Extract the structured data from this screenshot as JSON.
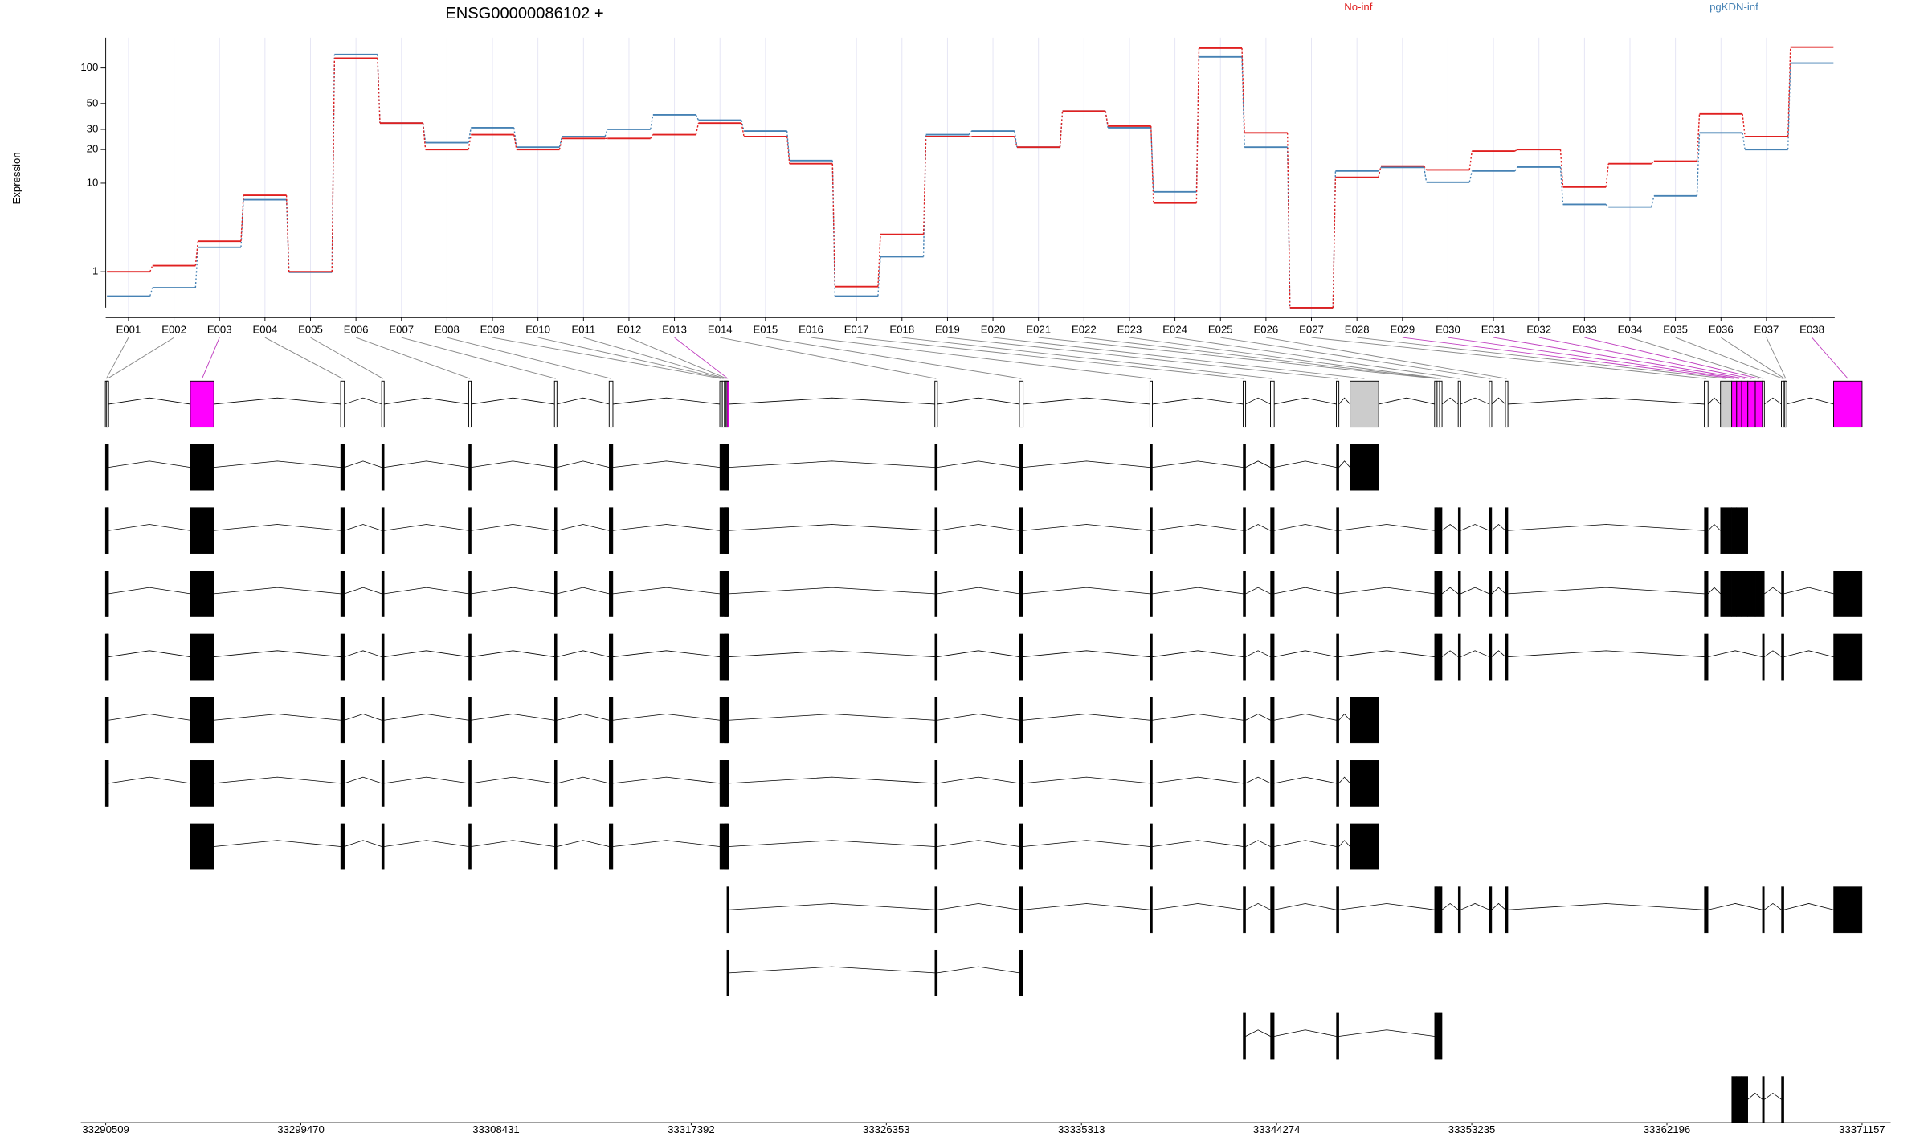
{
  "chart_data": [
    {
      "type": "line",
      "title": "ENSG00000086102 +",
      "y_label": "Expression",
      "yscale": "log1p",
      "grid": true,
      "legend": "top",
      "categories": [
        "E001",
        "E002",
        "E003",
        "E004",
        "E005",
        "E006",
        "E007",
        "E008",
        "E009",
        "E010",
        "E011",
        "E012",
        "E013",
        "E014",
        "E015",
        "E016",
        "E017",
        "E018",
        "E019",
        "E020",
        "E021",
        "E022",
        "E023",
        "E024",
        "E025",
        "E026",
        "E027",
        "E028",
        "E029",
        "E030",
        "E031",
        "E032",
        "E033",
        "E034",
        "E035",
        "E036",
        "E037",
        "E038"
      ],
      "ylim": [
        0,
        180
      ],
      "yticks": [
        1,
        10,
        20,
        30,
        50,
        100
      ],
      "series": [
        {
          "name": "No-inf",
          "color": "#e02020",
          "values": [
            1,
            1.25,
            2.6,
            7.7,
            1,
            121,
            34,
            20,
            27,
            20,
            25,
            25,
            27,
            34,
            26,
            15,
            0.5,
            3.1,
            26,
            26,
            21,
            43,
            32,
            6.5,
            147,
            28,
            0,
            11.3,
            14.3,
            13.2,
            19.4,
            20,
            9.2,
            15,
            15.8,
            40.7,
            26,
            150
          ]
        },
        {
          "name": "pgKDN-inf",
          "color": "#4682b4",
          "values": [
            0.25,
            0.47,
            2.2,
            7,
            0.98,
            130,
            34,
            23,
            31,
            21,
            26,
            30,
            40,
            36,
            29,
            16,
            0.25,
            1.67,
            27,
            29,
            21,
            43,
            31,
            8.3,
            124,
            21,
            0,
            12.9,
            13.9,
            10.2,
            12.9,
            14,
            6.3,
            5.95,
            7.6,
            28,
            20,
            110
          ]
        }
      ]
    },
    {
      "type": "gene_model",
      "xlim": [
        33290509,
        33371157
      ],
      "xticks": [
        33290509,
        33299470,
        33308431,
        33317392,
        33326353,
        33335313,
        33344274,
        33353235,
        33362196,
        33371157
      ],
      "transcript_color": "#000000",
      "exons": [
        {
          "start": 33290509,
          "end": 33290566,
          "color": "#ffffff"
        },
        {
          "start": 33290566,
          "end": 33290623,
          "color": "#ffffff"
        },
        {
          "start": 33294390,
          "end": 33295475,
          "color": "#ff00ff"
        },
        {
          "start": 33301297,
          "end": 33301468,
          "color": "#ffffff"
        },
        {
          "start": 33303181,
          "end": 33303295,
          "color": "#ffffff"
        },
        {
          "start": 33307176,
          "end": 33307291,
          "color": "#ffffff"
        },
        {
          "start": 33311115,
          "end": 33311229,
          "color": "#ffffff"
        },
        {
          "start": 33313626,
          "end": 33313798,
          "color": "#ffffff"
        },
        {
          "start": 33318707,
          "end": 33318821,
          "color": "#ffffff"
        },
        {
          "start": 33318821,
          "end": 33318935,
          "color": "#ffffff"
        },
        {
          "start": 33318935,
          "end": 33318992,
          "color": "#ffffff"
        },
        {
          "start": 33318992,
          "end": 33319049,
          "color": "#ffffff"
        },
        {
          "start": 33319049,
          "end": 33319106,
          "color": "#ff00ff"
        },
        {
          "start": 33328581,
          "end": 33328696,
          "color": "#ffffff"
        },
        {
          "start": 33332463,
          "end": 33332634,
          "color": "#ffffff"
        },
        {
          "start": 33338456,
          "end": 33338570,
          "color": "#ffffff"
        },
        {
          "start": 33342737,
          "end": 33342851,
          "color": "#ffffff"
        },
        {
          "start": 33343993,
          "end": 33344164,
          "color": "#ffffff"
        },
        {
          "start": 33347018,
          "end": 33347132,
          "color": "#ffffff"
        },
        {
          "start": 33347646,
          "end": 33348959,
          "color": "#cccccc"
        },
        {
          "start": 33351528,
          "end": 33351642,
          "color": "#ffffff"
        },
        {
          "start": 33351642,
          "end": 33351756,
          "color": "#ffffff"
        },
        {
          "start": 33351756,
          "end": 33351870,
          "color": "#ffffff"
        },
        {
          "start": 33352612,
          "end": 33352726,
          "color": "#ffffff"
        },
        {
          "start": 33354039,
          "end": 33354153,
          "color": "#ffffff"
        },
        {
          "start": 33354781,
          "end": 33354895,
          "color": "#ffffff"
        },
        {
          "start": 33363914,
          "end": 33364085,
          "color": "#ffffff"
        },
        {
          "start": 33364656,
          "end": 33365170,
          "color": "#cccccc"
        },
        {
          "start": 33365170,
          "end": 33365398,
          "color": "#ff00ff"
        },
        {
          "start": 33365398,
          "end": 33365626,
          "color": "#ff00ff"
        },
        {
          "start": 33365626,
          "end": 33365912,
          "color": "#ff00ff"
        },
        {
          "start": 33365912,
          "end": 33366254,
          "color": "#ff00ff"
        },
        {
          "start": 33366254,
          "end": 33366597,
          "color": "#ff00ff"
        },
        {
          "start": 33366597,
          "end": 33366654,
          "color": "#ffffff"
        },
        {
          "start": 33367453,
          "end": 33367567,
          "color": "#ffffff"
        },
        {
          "start": 33367567,
          "end": 33367624,
          "color": "#ffffff"
        },
        {
          "start": 33367624,
          "end": 33367681,
          "color": "#ffffff"
        },
        {
          "start": 33369850,
          "end": 33371157,
          "color": "#ff00ff"
        }
      ],
      "transcripts": [
        [
          0,
          1,
          2,
          3,
          4,
          5,
          6,
          7,
          8,
          9,
          10,
          11,
          12,
          13,
          14,
          15,
          16,
          17,
          18,
          19
        ],
        [
          0,
          1,
          2,
          3,
          4,
          5,
          6,
          7,
          8,
          9,
          10,
          11,
          12,
          13,
          14,
          15,
          16,
          17,
          18,
          20,
          21,
          22,
          23,
          24,
          25,
          26,
          27,
          28,
          29,
          30
        ],
        [
          0,
          1,
          2,
          3,
          4,
          5,
          6,
          7,
          8,
          9,
          10,
          11,
          12,
          13,
          14,
          15,
          16,
          17,
          18,
          20,
          21,
          22,
          23,
          24,
          25,
          26,
          27,
          28,
          29,
          30,
          31,
          32,
          33,
          34,
          37
        ],
        [
          0,
          1,
          2,
          3,
          4,
          5,
          6,
          7,
          8,
          9,
          10,
          11,
          12,
          13,
          14,
          15,
          16,
          17,
          18,
          20,
          21,
          22,
          23,
          24,
          25,
          26,
          33,
          34,
          37
        ],
        [
          0,
          1,
          2,
          3,
          4,
          5,
          6,
          7,
          8,
          9,
          10,
          11,
          12,
          13,
          14,
          15,
          16,
          17,
          18,
          19
        ],
        [
          0,
          1,
          2,
          3,
          4,
          5,
          6,
          7,
          8,
          9,
          10,
          11,
          12,
          13,
          14,
          15,
          16,
          17,
          18,
          19
        ],
        [
          2,
          3,
          4,
          5,
          6,
          7,
          8,
          9,
          10,
          11,
          12,
          13,
          14,
          15,
          16,
          17,
          18,
          19
        ],
        [
          12,
          13,
          14,
          15,
          16,
          17,
          18,
          20,
          21,
          22,
          23,
          24,
          25,
          26,
          33,
          34,
          37
        ],
        [
          12,
          13,
          14
        ],
        [
          16,
          17,
          18,
          20,
          21,
          22
        ],
        [
          28,
          29,
          30,
          33,
          34
        ]
      ]
    }
  ]
}
